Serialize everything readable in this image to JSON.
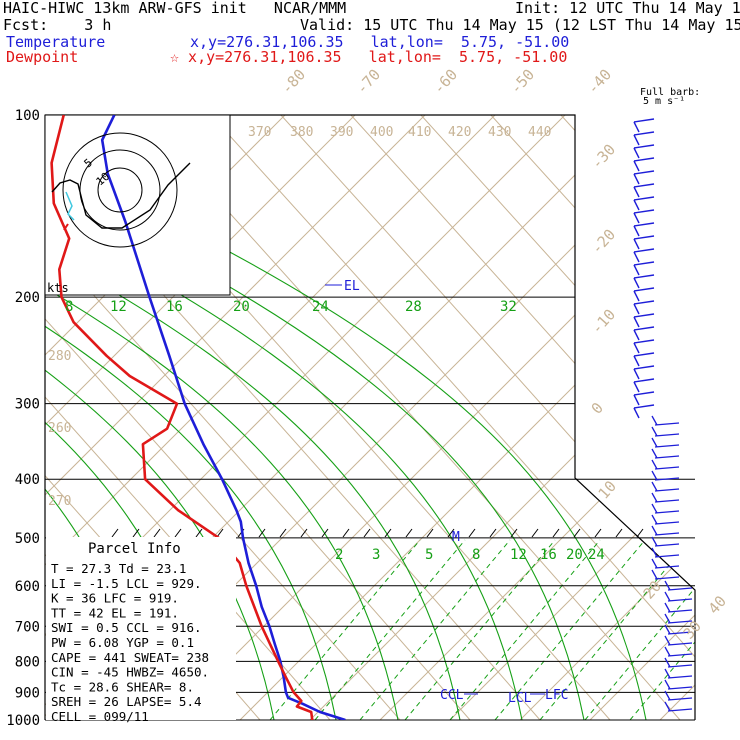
{
  "header": {
    "line1_left": "HAIC-HIWC 13km ARW-GFS init   NCAR/MMM",
    "line1_right": "Init: 12 UTC Thu 14 May 15",
    "line2_left": "Fcst:    3 h",
    "line2_right": "Valid: 15 UTC Thu 14 May 15 (12 LST Thu 14 May 15)",
    "temperature_label": "Temperature",
    "temperature_loc": "x,y=276.31,106.35   lat,lon=  5.75, -51.00",
    "dewpoint_label": "Dewpoint",
    "dewpoint_loc": "☆ x,y=276.31,106.35   lat,lon=  5.75, -51.00"
  },
  "colors": {
    "temperature": "#1e1ed8",
    "dewpoint": "#e01818",
    "isotherm": "#c8b496",
    "mixing_ratio": "#16a016",
    "isobar": "#000000"
  },
  "barb_title": [
    "Full barb:",
    "5 m s⁻¹"
  ],
  "hodograph": {
    "units": "kts",
    "ring_labels": [
      "5",
      "10"
    ]
  },
  "parcel_info": {
    "title": "Parcel Info",
    "rows": [
      "T   =   27.3 Td =  23.1",
      "LI  =   -1.5 LCL =  929.",
      "K   =     36 LFC =  919.",
      "TT  =     42 EL  =  191.",
      "SWI =    0.5 CCL =  916.",
      "PW  =   6.08 YGP =   0.1",
      "CAPE =   441 SWEAT=  238",
      "CIN =    -45 HWBZ= 4650.",
      "Tc  =   28.6 SHEAR=   8.",
      "SREH =    26 LAPSE=  5.4",
      "CELL = 099/11"
    ]
  },
  "chart_data": {
    "type": "line",
    "title": "",
    "y_axis": {
      "label": "",
      "scale": "log",
      "ylim": [
        1000,
        100
      ],
      "ticks": [
        1000,
        900,
        800,
        700,
        600,
        500,
        400,
        300,
        200,
        100
      ]
    },
    "isotherm_labels": [
      "-80",
      "-70",
      "-60",
      "-50",
      "-40",
      "-30",
      "-20",
      "-10",
      "0",
      "10",
      "20",
      "30",
      "40"
    ],
    "theta_labels": [
      "370",
      "380",
      "390",
      "400",
      "410",
      "420",
      "430",
      "440",
      "280",
      "260",
      "270"
    ],
    "mixing_ratio_labels_upper": [
      "8",
      "12",
      "16",
      "20",
      "24",
      "28",
      "32"
    ],
    "mixing_ratio_labels_lower": [
      "2",
      "3",
      "5",
      "8",
      "12",
      "16",
      "20",
      "24"
    ],
    "level_labels": [
      "EL",
      "M",
      "CCL",
      "LCL",
      "LFC"
    ],
    "series": [
      {
        "name": "Temperature",
        "p": [
          1000,
          970,
          940,
          919,
          900,
          850,
          800,
          750,
          700,
          650,
          600,
          550,
          500,
          470,
          450,
          400,
          350,
          300,
          250,
          200,
          150,
          125,
          110,
          100
        ],
        "skewed_x": [
          30.3,
          28.0,
          26.4,
          25.1,
          24.9,
          24.7,
          24.4,
          23.9,
          23.4,
          22.7,
          22.2,
          21.5,
          21.0,
          20.8,
          20.4,
          19.1,
          17.4,
          15.7,
          14.3,
          12.5,
          10.3,
          8.7,
          8.2,
          9.3
        ]
      },
      {
        "name": "Dewpoint",
        "p": [
          1000,
          970,
          950,
          930,
          900,
          850,
          800,
          700,
          600,
          550,
          500,
          450,
          400,
          350,
          330,
          300,
          270,
          250,
          220,
          200,
          180,
          160,
          140,
          120,
          100
        ],
        "skewed_x": [
          27.3,
          27.2,
          25.9,
          26.3,
          25.6,
          24.9,
          24.2,
          22.7,
          21.3,
          20.7,
          18.8,
          15.1,
          12.1,
          11.9,
          14.1,
          15.0,
          10.7,
          8.6,
          5.6,
          4.5,
          4.3,
          5.2,
          3.8,
          3.6,
          4.7
        ]
      }
    ]
  }
}
